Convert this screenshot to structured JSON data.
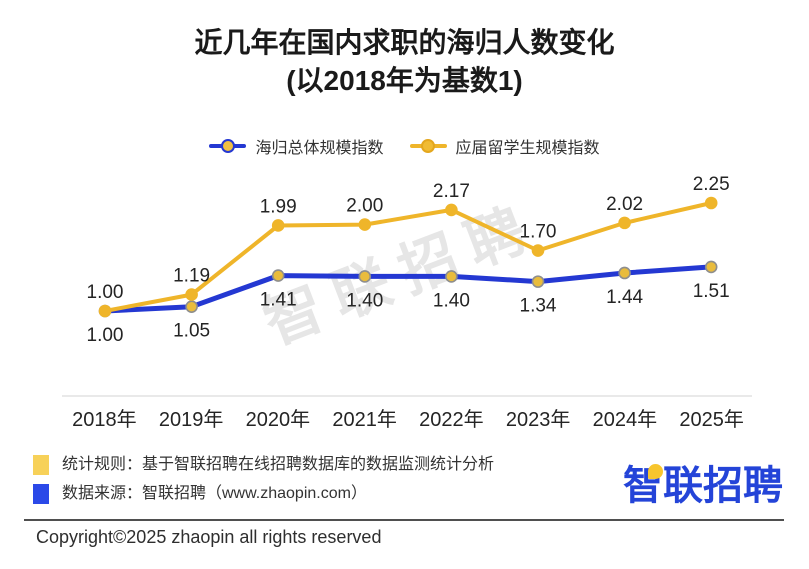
{
  "title": {
    "line1": "近几年在国内求职的海归人数变化",
    "line2": "(以2018年为基数1)"
  },
  "legend": [
    {
      "label": "海归总体规模指数",
      "color": "#2438d2"
    },
    {
      "label": "应届留学生规模指数",
      "color": "#efb52a"
    }
  ],
  "watermark": "智联招聘",
  "chart_data": {
    "type": "line",
    "title": "近几年在国内求职的海归人数变化 (以2018年为基数1)",
    "categories": [
      "2018年",
      "2019年",
      "2020年",
      "2021年",
      "2022年",
      "2023年",
      "2024年",
      "2025年"
    ],
    "series": [
      {
        "name": "海归总体规模指数",
        "color": "#2438d2",
        "marker_fill": "#e9bc3d",
        "marker_stroke": "#8e8e8e",
        "label_position": "below",
        "values": [
          1.0,
          1.05,
          1.41,
          1.4,
          1.4,
          1.34,
          1.44,
          1.51
        ]
      },
      {
        "name": "应届留学生规模指数",
        "color": "#efb52a",
        "marker_fill": "#efb52a",
        "marker_stroke": "#efb52a",
        "label_position": "above",
        "values": [
          1.0,
          1.19,
          1.99,
          2.0,
          2.17,
          1.7,
          2.02,
          2.25
        ]
      }
    ],
    "ylim": [
      1.0,
      2.4
    ],
    "grid": false,
    "legend_position": "top",
    "xlabel": "",
    "ylabel": ""
  },
  "footnotes": [
    {
      "marker_color": "#f7d159",
      "label": "统计规则：基于智联招聘在线招聘数据库的数据监测统计分析"
    },
    {
      "marker_color": "#2b49e8",
      "label": "数据来源：智联招聘（www.zhaopin.com）"
    }
  ],
  "logo": {
    "text": "智联招聘",
    "accent_color": "#f7c52d",
    "text_color": "#2444d8"
  },
  "copyright": "Copyright©2025 zhaopin all rights reserved"
}
